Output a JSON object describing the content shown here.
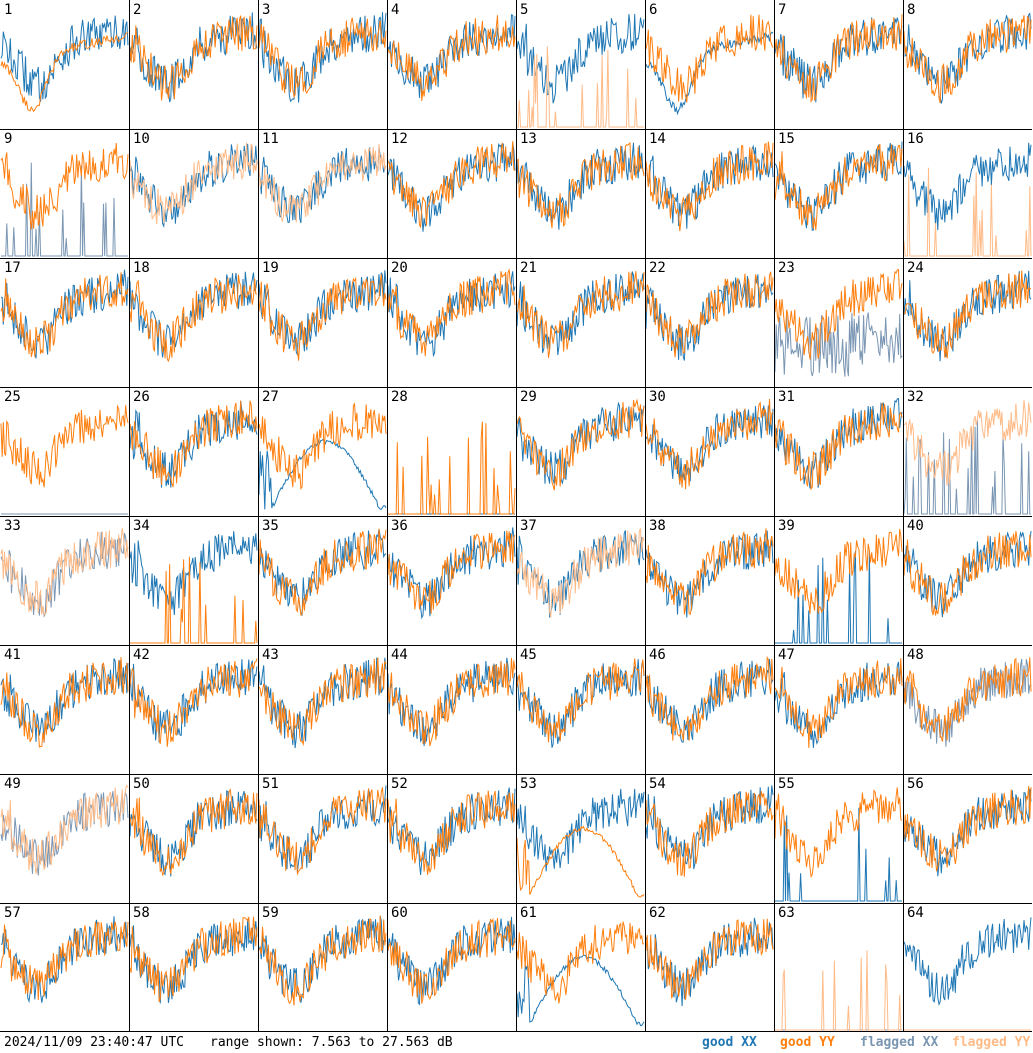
{
  "footer": {
    "timestamp": "2024/11/09 23:40:47 UTC",
    "range_text": "range shown: 7.563 to 27.563 dB",
    "legend": [
      {
        "label": "good XX",
        "color": "#1f77b4"
      },
      {
        "label": "good YY",
        "color": "#ff7f0e"
      },
      {
        "label": "flagged XX",
        "color": "#7a96b3"
      },
      {
        "label": "flagged YY",
        "color": "#ffbb88"
      }
    ]
  },
  "chart_data": {
    "type": "line",
    "grid": "8x8 small multiples",
    "ylim": [
      7.563,
      27.563
    ],
    "yunit": "dB",
    "series_names": [
      "good XX",
      "good YY",
      "flagged XX",
      "flagged YY"
    ],
    "panels": [
      {
        "n": 1,
        "xx": "good",
        "yy": "good",
        "xx_shape": "noisy",
        "yy_shape": "bowl"
      },
      {
        "n": 2,
        "xx": "good",
        "yy": "good",
        "xx_shape": "noisy",
        "yy_shape": "noisy"
      },
      {
        "n": 3,
        "xx": "good",
        "yy": "good",
        "xx_shape": "noisy",
        "yy_shape": "noisy"
      },
      {
        "n": 4,
        "xx": "good",
        "yy": "good",
        "xx_shape": "noisy",
        "yy_shape": "noisy"
      },
      {
        "n": 5,
        "xx": "good",
        "yy": "flagged",
        "xx_shape": "noisy",
        "yy_shape": "spikes"
      },
      {
        "n": 6,
        "xx": "good",
        "yy": "good",
        "xx_shape": "bowl",
        "yy_shape": "noisy"
      },
      {
        "n": 7,
        "xx": "good",
        "yy": "good",
        "xx_shape": "noisy",
        "yy_shape": "noisy"
      },
      {
        "n": 8,
        "xx": "good",
        "yy": "good",
        "xx_shape": "noisy",
        "yy_shape": "noisy"
      },
      {
        "n": 9,
        "xx": "flagged",
        "yy": "good",
        "xx_shape": "spikes",
        "yy_shape": "noisy"
      },
      {
        "n": 10,
        "xx": "good",
        "yy": "flagged",
        "xx_shape": "noisy",
        "yy_shape": "noisy"
      },
      {
        "n": 11,
        "xx": "good",
        "yy": "flagged",
        "xx_shape": "noisy",
        "yy_shape": "noisy"
      },
      {
        "n": 12,
        "xx": "good",
        "yy": "good",
        "xx_shape": "noisy",
        "yy_shape": "noisy"
      },
      {
        "n": 13,
        "xx": "good",
        "yy": "good",
        "xx_shape": "noisy",
        "yy_shape": "noisy"
      },
      {
        "n": 14,
        "xx": "good",
        "yy": "good",
        "xx_shape": "noisy",
        "yy_shape": "noisy"
      },
      {
        "n": 15,
        "xx": "good",
        "yy": "good",
        "xx_shape": "noisy",
        "yy_shape": "noisy"
      },
      {
        "n": 16,
        "xx": "good",
        "yy": "flagged",
        "xx_shape": "noisy",
        "yy_shape": "spikes"
      },
      {
        "n": 17,
        "xx": "good",
        "yy": "good",
        "xx_shape": "noisy",
        "yy_shape": "noisy"
      },
      {
        "n": 18,
        "xx": "good",
        "yy": "good",
        "xx_shape": "noisy",
        "yy_shape": "noisy"
      },
      {
        "n": 19,
        "xx": "good",
        "yy": "good",
        "xx_shape": "noisy",
        "yy_shape": "noisy"
      },
      {
        "n": 20,
        "xx": "good",
        "yy": "good",
        "xx_shape": "noisy",
        "yy_shape": "noisy"
      },
      {
        "n": 21,
        "xx": "good",
        "yy": "good",
        "xx_shape": "noisy",
        "yy_shape": "noisy"
      },
      {
        "n": 22,
        "xx": "good",
        "yy": "good",
        "xx_shape": "noisy",
        "yy_shape": "noisy"
      },
      {
        "n": 23,
        "xx": "flagged",
        "yy": "good",
        "xx_shape": "lowband",
        "yy_shape": "noisy"
      },
      {
        "n": 24,
        "xx": "good",
        "yy": "good",
        "xx_shape": "noisy",
        "yy_shape": "noisy"
      },
      {
        "n": 25,
        "xx": "flagged",
        "yy": "good",
        "xx_shape": "flat",
        "yy_shape": "noisy"
      },
      {
        "n": 26,
        "xx": "good",
        "yy": "good",
        "xx_shape": "noisy",
        "yy_shape": "noisy"
      },
      {
        "n": 27,
        "xx": "good",
        "yy": "good",
        "xx_shape": "hump",
        "yy_shape": "noisy"
      },
      {
        "n": 28,
        "xx": "good",
        "yy": "good",
        "xx_shape": "flat",
        "yy_shape": "spikes"
      },
      {
        "n": 29,
        "xx": "good",
        "yy": "good",
        "xx_shape": "noisy",
        "yy_shape": "noisy"
      },
      {
        "n": 30,
        "xx": "good",
        "yy": "good",
        "xx_shape": "noisy",
        "yy_shape": "noisy"
      },
      {
        "n": 31,
        "xx": "good",
        "yy": "good",
        "xx_shape": "noisy",
        "yy_shape": "noisy"
      },
      {
        "n": 32,
        "xx": "flagged",
        "yy": "flagged",
        "xx_shape": "spikes",
        "yy_shape": "noisy"
      },
      {
        "n": 33,
        "xx": "flagged",
        "yy": "flagged",
        "xx_shape": "noisy",
        "yy_shape": "noisy"
      },
      {
        "n": 34,
        "xx": "good",
        "yy": "good",
        "xx_shape": "noisy",
        "yy_shape": "spikes"
      },
      {
        "n": 35,
        "xx": "good",
        "yy": "good",
        "xx_shape": "noisy",
        "yy_shape": "noisy"
      },
      {
        "n": 36,
        "xx": "good",
        "yy": "good",
        "xx_shape": "noisy",
        "yy_shape": "noisy"
      },
      {
        "n": 37,
        "xx": "good",
        "yy": "flagged",
        "xx_shape": "noisy",
        "yy_shape": "noisy"
      },
      {
        "n": 38,
        "xx": "good",
        "yy": "good",
        "xx_shape": "noisy",
        "yy_shape": "noisy"
      },
      {
        "n": 39,
        "xx": "good",
        "yy": "good",
        "xx_shape": "spikes",
        "yy_shape": "noisy"
      },
      {
        "n": 40,
        "xx": "good",
        "yy": "good",
        "xx_shape": "noisy",
        "yy_shape": "noisy"
      },
      {
        "n": 41,
        "xx": "good",
        "yy": "good",
        "xx_shape": "noisy",
        "yy_shape": "noisy"
      },
      {
        "n": 42,
        "xx": "good",
        "yy": "good",
        "xx_shape": "noisy",
        "yy_shape": "noisy"
      },
      {
        "n": 43,
        "xx": "good",
        "yy": "good",
        "xx_shape": "noisy",
        "yy_shape": "noisy"
      },
      {
        "n": 44,
        "xx": "good",
        "yy": "good",
        "xx_shape": "noisy",
        "yy_shape": "noisy"
      },
      {
        "n": 45,
        "xx": "good",
        "yy": "good",
        "xx_shape": "noisy",
        "yy_shape": "noisy"
      },
      {
        "n": 46,
        "xx": "good",
        "yy": "good",
        "xx_shape": "noisy",
        "yy_shape": "noisy"
      },
      {
        "n": 47,
        "xx": "good",
        "yy": "good",
        "xx_shape": "noisy",
        "yy_shape": "noisy"
      },
      {
        "n": 48,
        "xx": "flagged",
        "yy": "good",
        "xx_shape": "noisy",
        "yy_shape": "noisy"
      },
      {
        "n": 49,
        "xx": "flagged",
        "yy": "flagged",
        "xx_shape": "noisy",
        "yy_shape": "noisy"
      },
      {
        "n": 50,
        "xx": "good",
        "yy": "good",
        "xx_shape": "noisy",
        "yy_shape": "noisy"
      },
      {
        "n": 51,
        "xx": "good",
        "yy": "good",
        "xx_shape": "noisy",
        "yy_shape": "noisy"
      },
      {
        "n": 52,
        "xx": "good",
        "yy": "good",
        "xx_shape": "noisy",
        "yy_shape": "noisy"
      },
      {
        "n": 53,
        "xx": "good",
        "yy": "good",
        "xx_shape": "noisy",
        "yy_shape": "hump"
      },
      {
        "n": 54,
        "xx": "good",
        "yy": "good",
        "xx_shape": "noisy",
        "yy_shape": "noisy"
      },
      {
        "n": 55,
        "xx": "good",
        "yy": "good",
        "xx_shape": "spikes",
        "yy_shape": "noisy"
      },
      {
        "n": 56,
        "xx": "good",
        "yy": "good",
        "xx_shape": "noisy",
        "yy_shape": "noisy"
      },
      {
        "n": 57,
        "xx": "good",
        "yy": "good",
        "xx_shape": "noisy",
        "yy_shape": "noisy"
      },
      {
        "n": 58,
        "xx": "good",
        "yy": "good",
        "xx_shape": "noisy",
        "yy_shape": "noisy"
      },
      {
        "n": 59,
        "xx": "good",
        "yy": "good",
        "xx_shape": "noisy",
        "yy_shape": "noisy"
      },
      {
        "n": 60,
        "xx": "good",
        "yy": "good",
        "xx_shape": "noisy",
        "yy_shape": "noisy"
      },
      {
        "n": 61,
        "xx": "good",
        "yy": "good",
        "xx_shape": "hump",
        "yy_shape": "noisy"
      },
      {
        "n": 62,
        "xx": "good",
        "yy": "good",
        "xx_shape": "noisy",
        "yy_shape": "noisy"
      },
      {
        "n": 63,
        "xx": "flagged",
        "yy": "flagged",
        "xx_shape": "flat",
        "yy_shape": "spikes"
      },
      {
        "n": 64,
        "xx": "good",
        "yy": "flagged",
        "xx_shape": "noisy",
        "yy_shape": "flat"
      }
    ]
  }
}
